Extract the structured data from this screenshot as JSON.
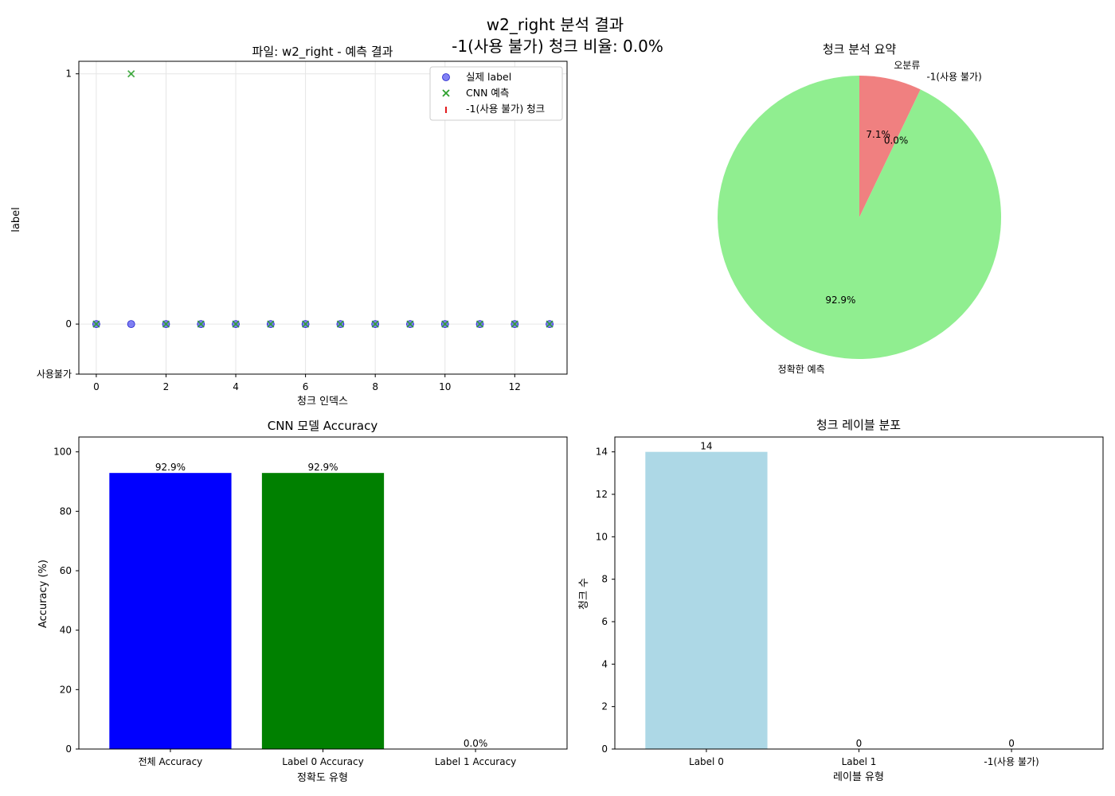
{
  "figure": {
    "title_line1": "w2_right 분석 결과",
    "title_line2": "-1(사용 불가) 청크 비율: 0.0%"
  },
  "chart_data": [
    {
      "type": "scatter",
      "title": "파일: w2_right - 예측 결과",
      "xlabel": "청크 인덱스",
      "ylabel": "label",
      "xlim": [
        -0.5,
        13.5
      ],
      "ylim": [
        -0.2,
        1.05
      ],
      "xticks": [
        0,
        2,
        4,
        6,
        8,
        10,
        12
      ],
      "yticks": [
        {
          "value": -0.2,
          "label": "사용불가"
        },
        {
          "value": 0,
          "label": "0"
        },
        {
          "value": 1,
          "label": "1"
        }
      ],
      "grid": true,
      "legend": "upper-right",
      "colors": {
        "actual": "#4b4bf0",
        "cnn": "#2ca02c",
        "unusable": "#e31a1c"
      },
      "series": [
        {
          "name": "실제 label",
          "marker": "circle",
          "x": [
            0,
            1,
            2,
            3,
            4,
            5,
            6,
            7,
            8,
            9,
            10,
            11,
            12,
            13
          ],
          "y": [
            0,
            0,
            0,
            0,
            0,
            0,
            0,
            0,
            0,
            0,
            0,
            0,
            0,
            0
          ]
        },
        {
          "name": "CNN 예측",
          "marker": "x",
          "x": [
            0,
            1,
            2,
            3,
            4,
            5,
            6,
            7,
            8,
            9,
            10,
            11,
            12,
            13
          ],
          "y": [
            0,
            1,
            0,
            0,
            0,
            0,
            0,
            0,
            0,
            0,
            0,
            0,
            0,
            0
          ]
        },
        {
          "name": "-1(사용 불가) 청크",
          "marker": "vline",
          "x": [],
          "y": []
        }
      ]
    },
    {
      "type": "pie",
      "title": "청크 분석 요약",
      "colors": [
        "#90ee90",
        "#f08080",
        "#cccccc"
      ],
      "slices": [
        {
          "label": "정확한 예측",
          "value": 92.9,
          "pct_label": "92.9%"
        },
        {
          "label": "오분류",
          "value": 7.1,
          "pct_label": "7.1%"
        },
        {
          "label": "-1(사용 불가)",
          "value": 0.0,
          "pct_label": "0.0%"
        }
      ]
    },
    {
      "type": "bar",
      "title": "CNN 모델 Accuracy",
      "xlabel": "정확도 유형",
      "ylabel": "Accuracy (%)",
      "ylim": [
        0,
        105
      ],
      "yticks": [
        0,
        20,
        40,
        60,
        80,
        100
      ],
      "categories": [
        "전체 Accuracy",
        "Label 0 Accuracy",
        "Label 1 Accuracy"
      ],
      "values": [
        92.9,
        92.9,
        0.0
      ],
      "value_labels": [
        "92.9%",
        "92.9%",
        "0.0%"
      ],
      "colors": [
        "#0000ff",
        "#008000",
        "#ff0000"
      ]
    },
    {
      "type": "bar",
      "title": "청크 레이블 분포",
      "xlabel": "레이블 유형",
      "ylabel": "청크 수",
      "ylim": [
        0,
        14.7
      ],
      "yticks": [
        0,
        2,
        4,
        6,
        8,
        10,
        12,
        14
      ],
      "categories": [
        "Label 0",
        "Label 1",
        "-1(사용 불가)"
      ],
      "values": [
        14,
        0,
        0
      ],
      "value_labels": [
        "14",
        "0",
        "0"
      ],
      "colors": [
        "#add8e6",
        "#f08080",
        "#d3d3d3"
      ]
    }
  ]
}
